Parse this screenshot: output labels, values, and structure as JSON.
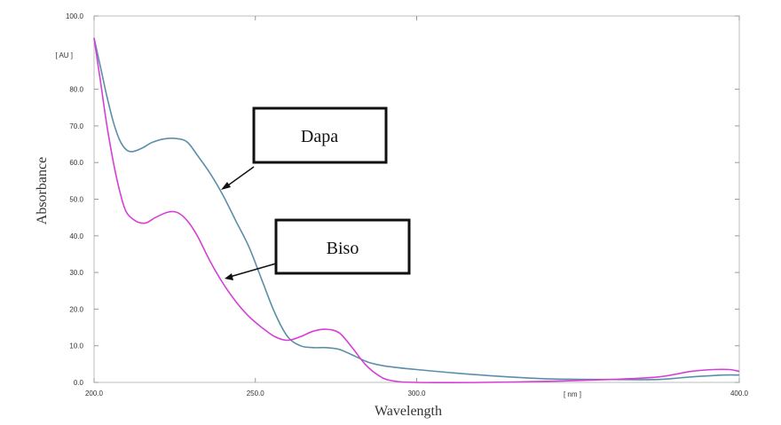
{
  "chart_data": {
    "type": "line",
    "xlabel": "Wavelength",
    "ylabel": "Absorbance",
    "x_unit_label": "[ nm ]",
    "y_unit_label": "[ AU ]",
    "xlim": [
      200,
      400
    ],
    "ylim": [
      0,
      100
    ],
    "x_ticks": [
      "200.0",
      "250.0",
      "300.0",
      "400.0"
    ],
    "x_tick_values": [
      200,
      250,
      300,
      400
    ],
    "y_ticks": [
      "0.0",
      "10.0",
      "20.0",
      "30.0",
      "40.0",
      "50.0",
      "60.0",
      "70.0",
      "80.0",
      "100.0"
    ],
    "y_tick_values": [
      0,
      10,
      20,
      30,
      40,
      50,
      60,
      70,
      80,
      100
    ],
    "grid": false,
    "series": [
      {
        "name": "Dapa",
        "color": "#5b8fa8",
        "points": [
          [
            200,
            94
          ],
          [
            202,
            86
          ],
          [
            204,
            78
          ],
          [
            206,
            71
          ],
          [
            208,
            66
          ],
          [
            210,
            63.5
          ],
          [
            212,
            63
          ],
          [
            215,
            64
          ],
          [
            218,
            65.5
          ],
          [
            222,
            66.5
          ],
          [
            226,
            66.5
          ],
          [
            229,
            65.5
          ],
          [
            232,
            62
          ],
          [
            236,
            57
          ],
          [
            240,
            51
          ],
          [
            244,
            44
          ],
          [
            248,
            37
          ],
          [
            252,
            28
          ],
          [
            256,
            19
          ],
          [
            260,
            12.5
          ],
          [
            264,
            10
          ],
          [
            268,
            9.5
          ],
          [
            272,
            9.5
          ],
          [
            276,
            9
          ],
          [
            280,
            7.5
          ],
          [
            285,
            5.5
          ],
          [
            290,
            4.5
          ],
          [
            300,
            3.5
          ],
          [
            320,
            2
          ],
          [
            340,
            1
          ],
          [
            360,
            0.8
          ],
          [
            375,
            0.8
          ],
          [
            385,
            1.5
          ],
          [
            395,
            2
          ],
          [
            400,
            2
          ]
        ]
      },
      {
        "name": "Biso",
        "color": "#d63fd6",
        "points": [
          [
            200,
            94
          ],
          [
            202,
            82
          ],
          [
            204,
            70
          ],
          [
            206,
            60
          ],
          [
            208,
            52
          ],
          [
            210,
            46.5
          ],
          [
            213,
            44
          ],
          [
            216,
            43.5
          ],
          [
            219,
            45
          ],
          [
            223,
            46.5
          ],
          [
            226,
            46.3
          ],
          [
            229,
            44
          ],
          [
            232,
            40
          ],
          [
            236,
            33
          ],
          [
            240,
            27
          ],
          [
            244,
            22
          ],
          [
            248,
            18
          ],
          [
            252,
            15
          ],
          [
            256,
            12.5
          ],
          [
            260,
            11.5
          ],
          [
            264,
            12.5
          ],
          [
            268,
            14
          ],
          [
            272,
            14.5
          ],
          [
            276,
            13.5
          ],
          [
            280,
            9.5
          ],
          [
            284,
            5
          ],
          [
            288,
            2
          ],
          [
            292,
            0.5
          ],
          [
            300,
            0
          ],
          [
            320,
            0
          ],
          [
            340,
            0.3
          ],
          [
            360,
            0.8
          ],
          [
            375,
            1.5
          ],
          [
            385,
            3
          ],
          [
            392,
            3.5
          ],
          [
            397,
            3.5
          ],
          [
            400,
            3
          ]
        ]
      }
    ],
    "annotations": [
      {
        "label": "Dapa",
        "target_series": "Dapa"
      },
      {
        "label": "Biso",
        "target_series": "Biso"
      }
    ]
  }
}
